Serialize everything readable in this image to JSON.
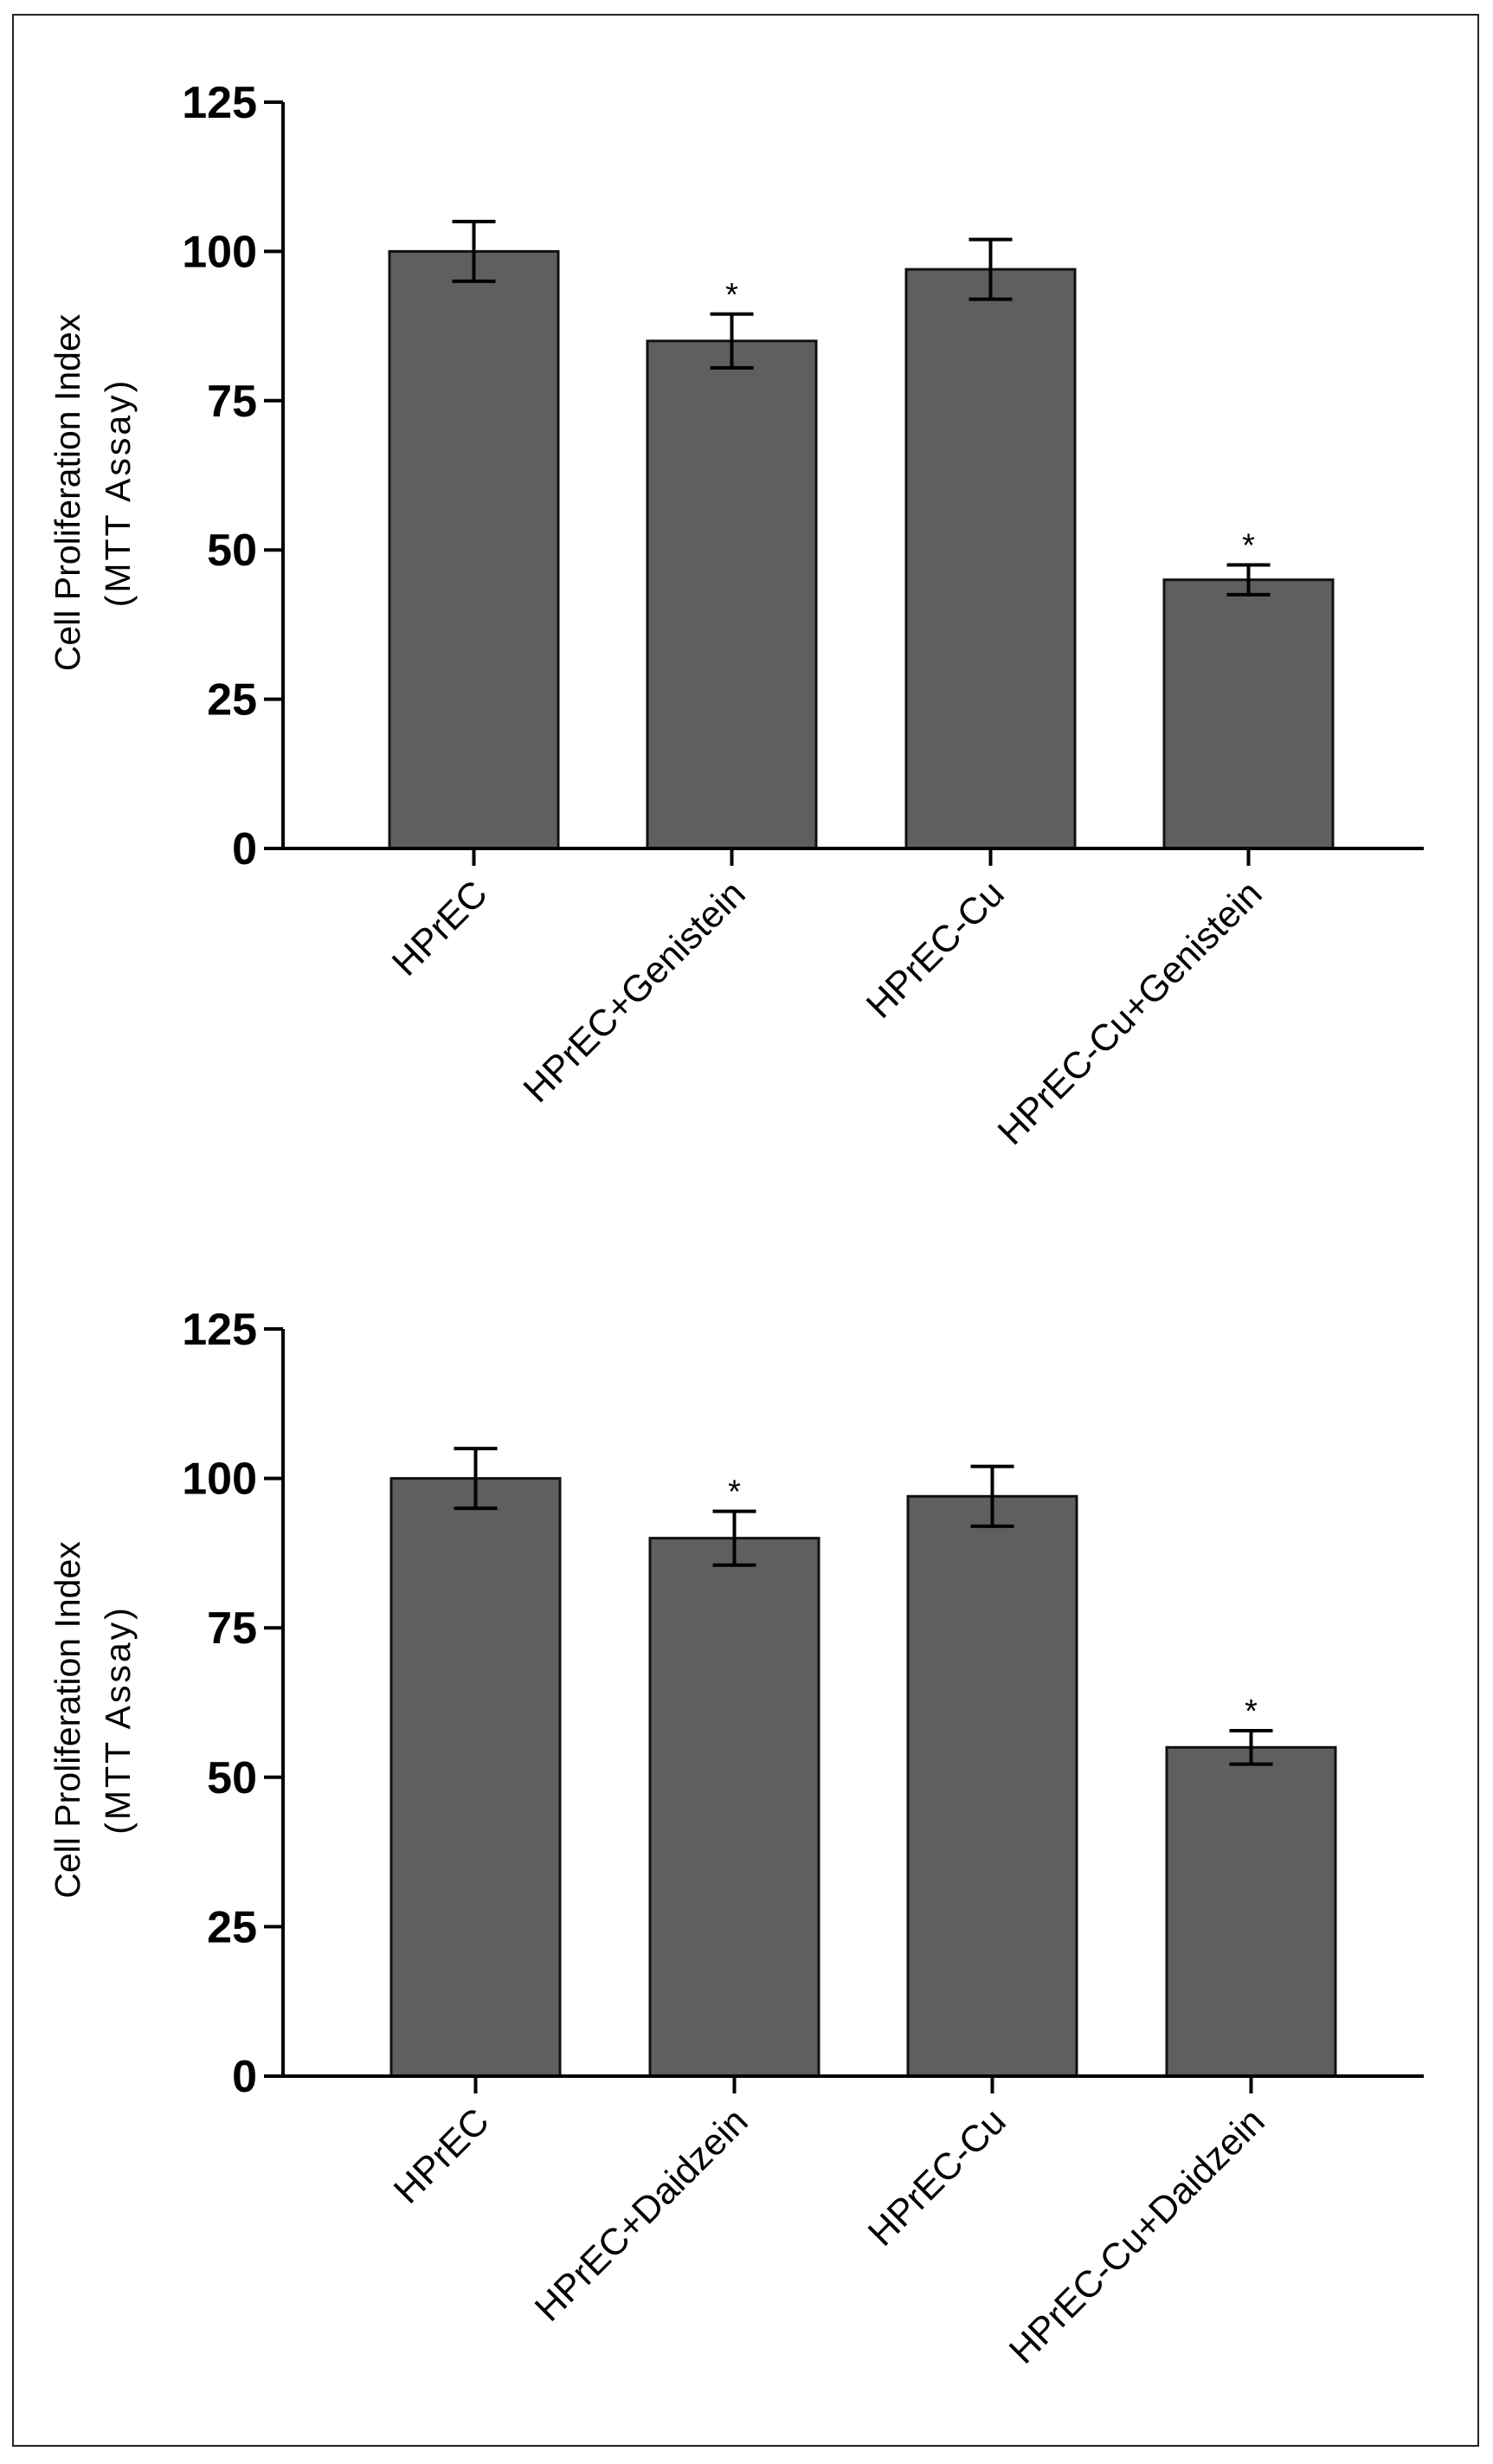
{
  "chart_data": [
    {
      "type": "bar",
      "title": "",
      "xlabel": "",
      "ylabel_line1": "Cell Proliferation Index",
      "ylabel_line2": "(MTT Assay)",
      "ylim": [
        0,
        125
      ],
      "yticks": [
        0,
        25,
        50,
        75,
        100,
        125
      ],
      "categories": [
        "HPrEC",
        "HPrEC+Genistein",
        "HPrEC-Cu",
        "HPrEC-Cu+Genistein"
      ],
      "values": [
        100,
        85,
        97,
        45
      ],
      "error": [
        5,
        4.5,
        5,
        2.5
      ],
      "significance": [
        "",
        "*",
        "",
        "*"
      ],
      "bar_color": "#5f5f5f"
    },
    {
      "type": "bar",
      "title": "",
      "xlabel": "",
      "ylabel_line1": "Cell Proliferation Index",
      "ylabel_line2": "(MTT Assay)",
      "ylim": [
        0,
        125
      ],
      "yticks": [
        0,
        25,
        50,
        75,
        100,
        125
      ],
      "categories": [
        "HPrEC",
        "HPrEC+Daidzein",
        "HPrEC-Cu",
        "HPrEC-Cu+Daidzein"
      ],
      "values": [
        100,
        90,
        97,
        55
      ],
      "error": [
        5,
        4.5,
        5,
        2.8
      ],
      "significance": [
        "",
        "*",
        "",
        "*"
      ],
      "bar_color": "#5f5f5f"
    }
  ]
}
